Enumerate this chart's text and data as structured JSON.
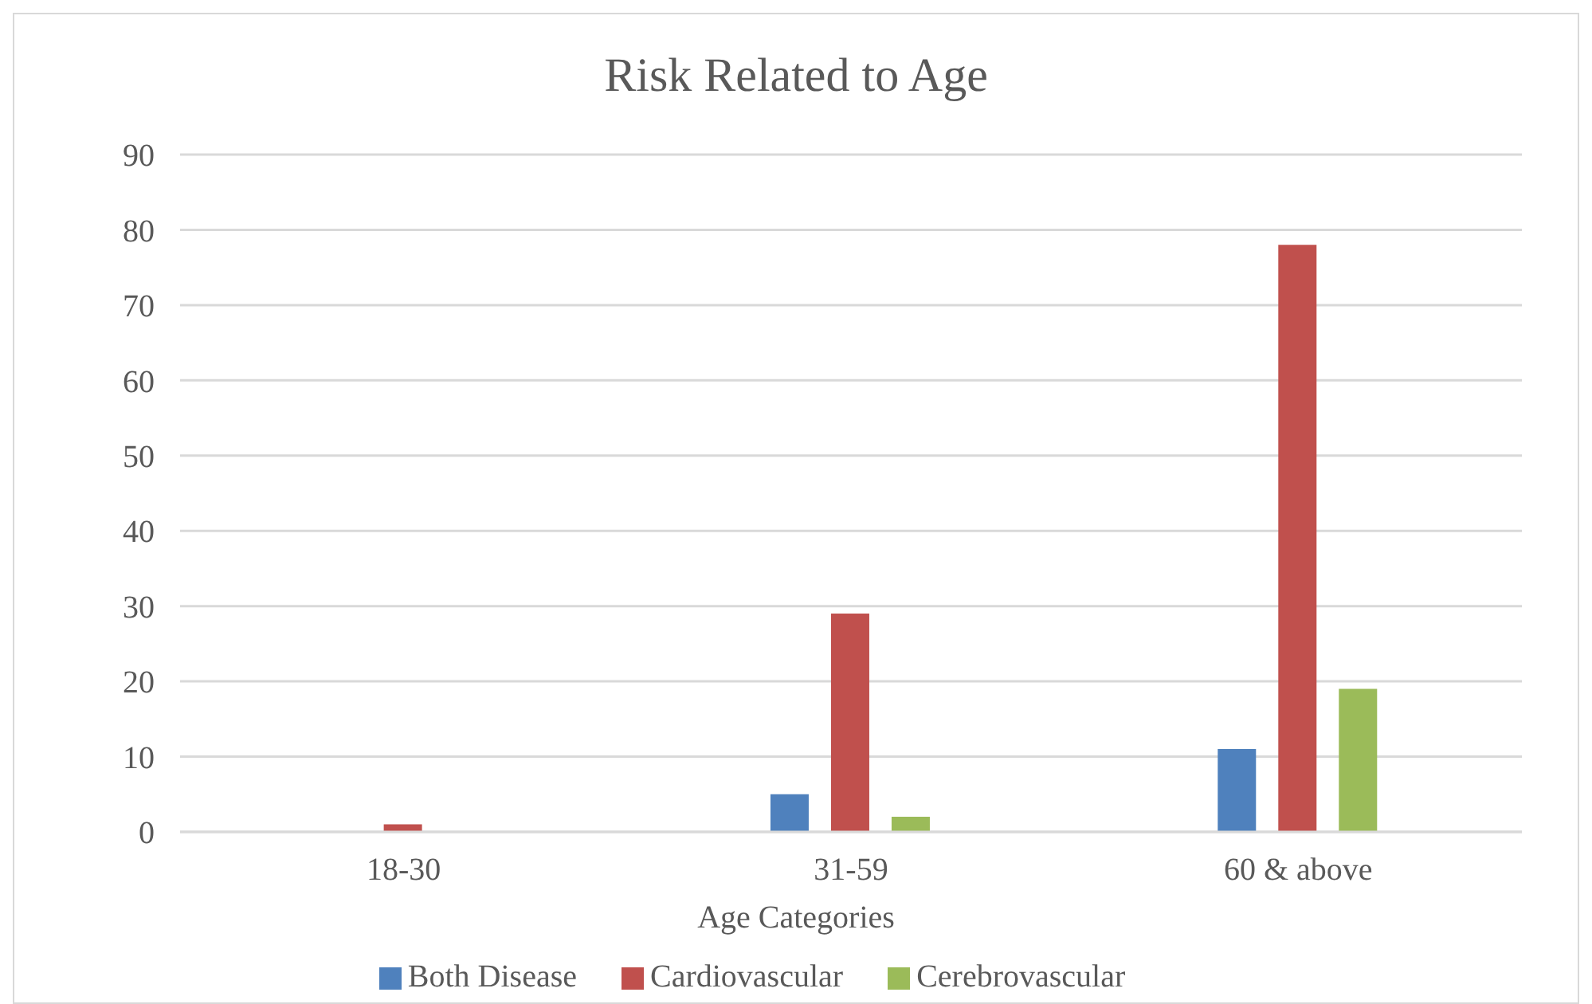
{
  "chart_data": {
    "type": "bar",
    "title": "Risk Related to Age",
    "xlabel": "Age Categories",
    "categories": [
      "18-30",
      "31-59",
      "60 & above"
    ],
    "series": [
      {
        "name": "Both Disease",
        "color": "#4f81bd",
        "values": [
          0,
          5,
          11
        ]
      },
      {
        "name": "Cardiovascular",
        "color": "#c0504d",
        "values": [
          1,
          29,
          78
        ]
      },
      {
        "name": "Cerebrovascular",
        "color": "#9bbb59",
        "values": [
          0,
          2,
          19
        ]
      }
    ],
    "ylim": [
      0,
      90
    ],
    "yticks": [
      0,
      10,
      20,
      30,
      40,
      50,
      60,
      70,
      80,
      90
    ],
    "grid": "y",
    "legend": "bottom"
  }
}
